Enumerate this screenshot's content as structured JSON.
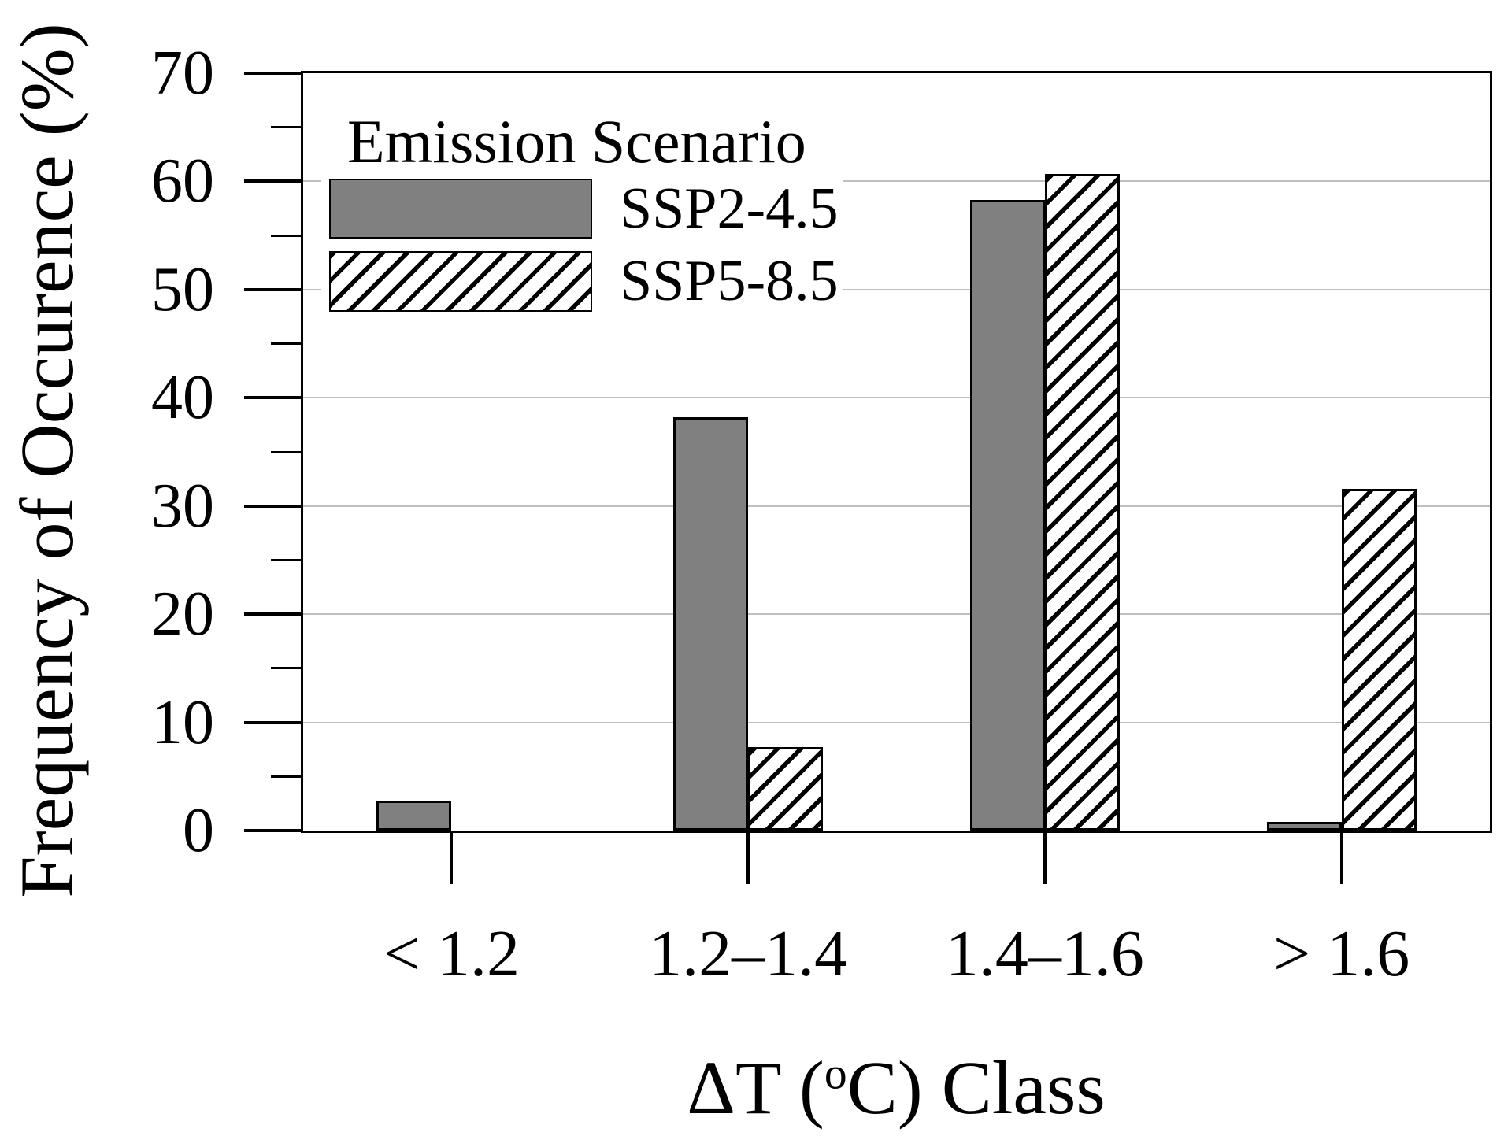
{
  "figure": {
    "background": "#ffffff",
    "text_color": "#000000"
  },
  "chart_data": {
    "type": "bar",
    "title": "",
    "xlabel": "ΔT (°C) Class",
    "xlabel_parts": {
      "pre": "ΔT (",
      "sup": "o",
      "post": "C) Class"
    },
    "ylabel": "Frequency of Occurence (%)",
    "categories": [
      "< 1.2",
      "1.2–1.4",
      "1.4–1.6",
      "> 1.6"
    ],
    "series": [
      {
        "name": "SSP2-4.5",
        "style": "solid-gray",
        "values": [
          2.8,
          38.2,
          58.3,
          0.8
        ]
      },
      {
        "name": "SSP5-8.5",
        "style": "black-hatched",
        "values": [
          0,
          7.7,
          60.7,
          31.6
        ]
      }
    ],
    "ylim": [
      0,
      70
    ],
    "ytick_interval": 10,
    "yminor_interval": 5,
    "ytick_labels": [
      "0",
      "10",
      "20",
      "30",
      "40",
      "50",
      "60",
      "70"
    ],
    "grid": "horizontal-major",
    "legend": {
      "title": "Emission Scenario",
      "position": "top-left-inside"
    },
    "colors": {
      "bar_gray": "#808080",
      "bar_border": "#000000",
      "hatch_line": "#000000",
      "hatch_bg": "#ffffff",
      "gridline": "#bfbfbf",
      "axis": "#000000"
    }
  }
}
